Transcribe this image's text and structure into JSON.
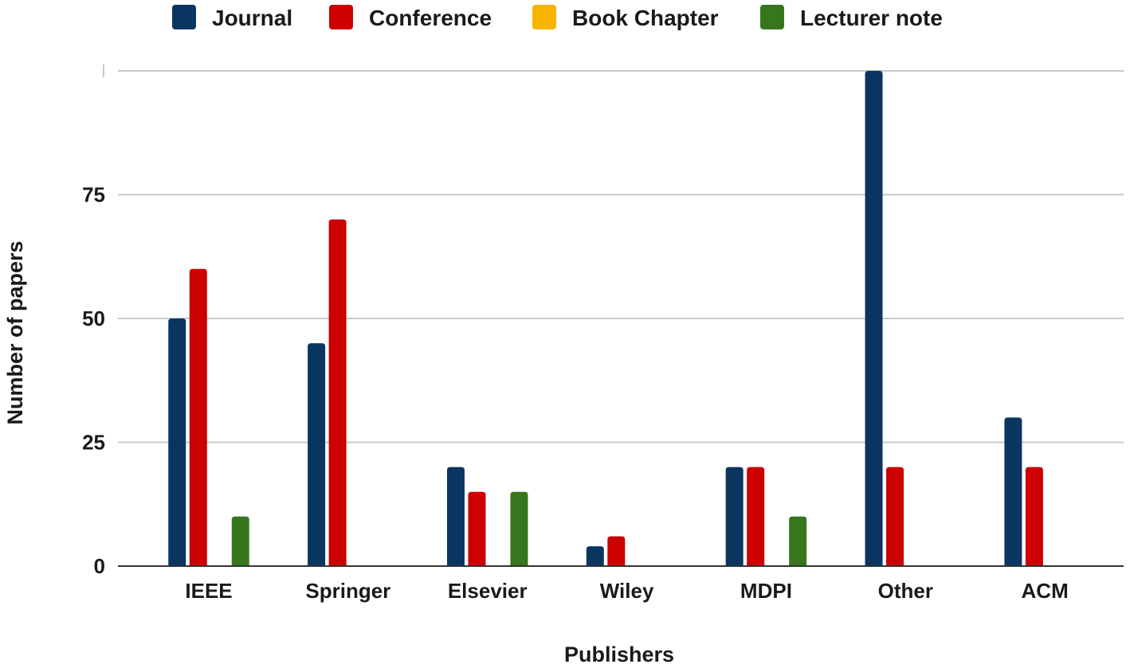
{
  "chart_data": {
    "type": "bar",
    "title": "",
    "xlabel": "Publishers",
    "ylabel": "Number of papers",
    "categories": [
      "IEEE",
      "Springer",
      "Elsevier",
      "Wiley",
      "MDPI",
      "Other",
      "ACM"
    ],
    "series": [
      {
        "name": "Journal",
        "color": "#0b3561",
        "values": [
          50,
          45,
          20,
          4,
          20,
          100,
          30
        ]
      },
      {
        "name": "Conference",
        "color": "#cc0000",
        "values": [
          60,
          70,
          15,
          6,
          20,
          20,
          20
        ]
      },
      {
        "name": "Book Chapter",
        "color": "#f6b400",
        "values": [
          0,
          0,
          0,
          0,
          0,
          0,
          0
        ]
      },
      {
        "name": "Lecturer note",
        "color": "#38761d",
        "values": [
          10,
          0,
          15,
          0,
          10,
          0,
          0
        ]
      }
    ],
    "ylim": [
      0,
      100
    ],
    "yticks": [
      0,
      25,
      50,
      75
    ],
    "grid": true,
    "legend_position": "top"
  }
}
